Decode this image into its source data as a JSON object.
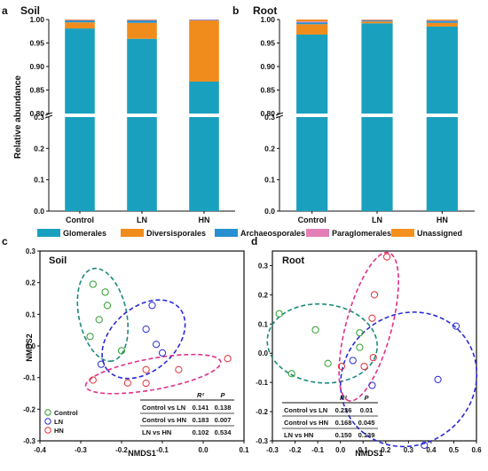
{
  "panel_letters": [
    "a",
    "b",
    "c",
    "d"
  ],
  "legend_ab": {
    "entries": [
      {
        "label": "Glomerales",
        "color": "#1aa0bf"
      },
      {
        "label": "Diversisporales",
        "color": "#f08c1c"
      },
      {
        "label": "Archaeosporales",
        "color": "#2790d0"
      },
      {
        "label": "Paraglomerales",
        "color": "#e37fb5"
      },
      {
        "label": "Unassigned",
        "color": "#f5901e"
      }
    ]
  },
  "chart_data": [
    {
      "panel": "a",
      "type": "bar",
      "stacked": true,
      "title": "Soil",
      "ylabel": "Relative abundance",
      "categories": [
        "Control",
        "LN",
        "HN"
      ],
      "axis_break": {
        "lower_range": [
          0.0,
          0.3
        ],
        "upper_range": [
          0.8,
          1.0
        ]
      },
      "yticks_lower": [
        "0.0",
        "0.1",
        "0.2",
        "0.3"
      ],
      "yticks_upper": [
        "0.80",
        "0.85",
        "0.90",
        "0.95",
        "1.00"
      ],
      "series": [
        {
          "name": "Glomerales",
          "values": [
            0.981,
            0.959,
            0.868
          ],
          "color": "#1aa0bf"
        },
        {
          "name": "Diversisporales",
          "values": [
            0.013,
            0.034,
            0.13
          ],
          "color": "#f08c1c"
        },
        {
          "name": "Archaeosporales",
          "values": [
            0.004,
            0.005,
            0.001
          ],
          "color": "#2790d0"
        },
        {
          "name": "Paraglomerales",
          "values": [
            0.001,
            0.001,
            0.001
          ],
          "color": "#e37fb5"
        },
        {
          "name": "Unassigned",
          "values": [
            0.001,
            0.001,
            0.0
          ],
          "color": "#f5901e"
        }
      ]
    },
    {
      "panel": "b",
      "type": "bar",
      "stacked": true,
      "title": "Root",
      "ylabel": "",
      "categories": [
        "Control",
        "LN",
        "HN"
      ],
      "axis_break": {
        "lower_range": [
          0.0,
          0.3
        ],
        "upper_range": [
          0.8,
          1.0
        ]
      },
      "yticks_lower": [
        "0.0",
        "0.1",
        "0.2",
        "0.3"
      ],
      "yticks_upper": [
        "0.80",
        "0.85",
        "0.90",
        "0.95",
        "1.00"
      ],
      "series": [
        {
          "name": "Glomerales",
          "values": [
            0.968,
            0.992,
            0.985
          ],
          "color": "#1aa0bf"
        },
        {
          "name": "Diversisporales",
          "values": [
            0.022,
            0.004,
            0.008
          ],
          "color": "#f08c1c"
        },
        {
          "name": "Archaeosporales",
          "values": [
            0.004,
            0.002,
            0.004
          ],
          "color": "#2790d0"
        },
        {
          "name": "Paraglomerales",
          "values": [
            0.002,
            0.001,
            0.001
          ],
          "color": "#e37fb5"
        },
        {
          "name": "Unassigned",
          "values": [
            0.004,
            0.001,
            0.002
          ],
          "color": "#f5901e"
        }
      ]
    },
    {
      "panel": "c",
      "type": "scatter",
      "title": "Soil",
      "xlabel": "NMDS1",
      "ylabel": "NMDS2",
      "xlim": [
        -0.4,
        0.1
      ],
      "ylim": [
        -0.3,
        0.3
      ],
      "xticks": [
        "-0.4",
        "-0.3",
        "-0.2",
        "-0.1",
        "0.0",
        "0.1"
      ],
      "yticks": [
        "-0.3",
        "-0.2",
        "-0.1",
        "0.0",
        "0.1",
        "0.2",
        "0.3"
      ],
      "legend": [
        {
          "name": "Control",
          "color": "#2e9e2e"
        },
        {
          "name": "LN",
          "color": "#2a2ad8"
        },
        {
          "name": "HN",
          "color": "#e0303a"
        }
      ],
      "series": [
        {
          "name": "Control",
          "color": "#2e9e2e",
          "points": [
            [
              -0.27,
              0.195
            ],
            [
              -0.24,
              0.17
            ],
            [
              -0.255,
              0.083
            ],
            [
              -0.235,
              0.128
            ],
            [
              -0.277,
              0.03
            ],
            [
              -0.2,
              -0.015
            ]
          ]
        },
        {
          "name": "LN",
          "color": "#2a2ad8",
          "points": [
            [
              -0.125,
              0.128
            ],
            [
              -0.14,
              0.053
            ],
            [
              -0.115,
              0.005
            ],
            [
              -0.1,
              -0.022
            ],
            [
              -0.25,
              -0.058
            ]
          ]
        },
        {
          "name": "HN",
          "color": "#e0303a",
          "points": [
            [
              -0.27,
              -0.108
            ],
            [
              -0.185,
              -0.117
            ],
            [
              -0.14,
              -0.075
            ],
            [
              -0.14,
              -0.118
            ],
            [
              -0.06,
              -0.075
            ],
            [
              0.06,
              -0.04
            ]
          ]
        }
      ],
      "ellipse_colors": [
        "#1c8a7a",
        "#2a2ad8",
        "#e0308a"
      ],
      "stats_table": {
        "headers": [
          "",
          "R²",
          "P"
        ],
        "rows": [
          [
            "Control vs LN",
            "0.141",
            "0.138"
          ],
          [
            "Control vs HN",
            "0.183",
            "0.007"
          ],
          [
            "LN vs HN",
            "0.102",
            "0.534"
          ]
        ]
      }
    },
    {
      "panel": "d",
      "type": "scatter",
      "title": "Root",
      "xlabel": "NMDS1",
      "ylabel": "",
      "xlim": [
        -0.3,
        0.6
      ],
      "ylim": [
        -0.3,
        0.35
      ],
      "xticks": [
        "-0.3",
        "-0.2",
        "-0.1",
        "0.0",
        "0.1",
        "0.2",
        "0.3",
        "0.4",
        "0.5",
        "0.6"
      ],
      "yticks": [
        "-0.3",
        "-0.2",
        "-0.1",
        "0.0",
        "0.1",
        "0.2",
        "0.3"
      ],
      "series": [
        {
          "name": "Control",
          "color": "#2e9e2e",
          "points": [
            [
              -0.27,
              0.135
            ],
            [
              -0.11,
              0.08
            ],
            [
              -0.215,
              -0.07
            ],
            [
              -0.055,
              -0.035
            ],
            [
              0.085,
              0.07
            ],
            [
              0.085,
              0.02
            ]
          ]
        },
        {
          "name": "LN",
          "color": "#2a2ad8",
          "points": [
            [
              0.51,
              0.093
            ],
            [
              0.055,
              -0.025
            ],
            [
              0.14,
              -0.11
            ],
            [
              0.43,
              -0.09
            ],
            [
              0.37,
              -0.315
            ]
          ]
        },
        {
          "name": "HN",
          "color": "#e0303a",
          "points": [
            [
              0.205,
              0.33
            ],
            [
              0.15,
              0.2
            ],
            [
              0.14,
              0.12
            ],
            [
              0.145,
              -0.015
            ],
            [
              0.105,
              -0.045
            ],
            [
              0.005,
              -0.045
            ]
          ]
        }
      ],
      "ellipse_colors": [
        "#1c8a7a",
        "#2a2ad8",
        "#e0308a"
      ],
      "stats_table": {
        "headers": [
          "",
          "R²",
          "P"
        ],
        "rows": [
          [
            "Control vs LN",
            "0.236",
            "0.01"
          ],
          [
            "Control vs HN",
            "0.168",
            "0.045"
          ],
          [
            "LN vs HN",
            "0.150",
            "0.139"
          ]
        ]
      }
    }
  ]
}
